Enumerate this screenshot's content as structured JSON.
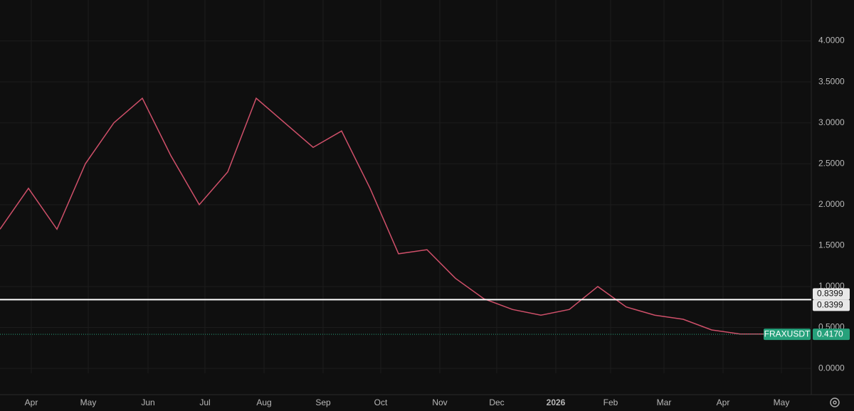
{
  "chart_data": {
    "type": "line",
    "series": [
      {
        "name": "FRAXUSDT",
        "color": "#d0506a",
        "values": [
          1.7,
          2.2,
          1.7,
          2.5,
          3.0,
          3.3,
          2.6,
          2.0,
          2.4,
          3.3,
          3.0,
          2.7,
          2.9,
          2.2,
          1.4,
          1.45,
          1.1,
          0.85,
          0.72,
          0.65,
          0.72,
          1.0,
          0.75,
          0.65,
          0.6,
          0.47,
          0.42,
          0.42,
          0.417
        ]
      }
    ],
    "xlim": [
      0,
      28.5
    ],
    "xticks": [
      {
        "value": 1.1,
        "label": "Apr"
      },
      {
        "value": 3.1,
        "label": "May"
      },
      {
        "value": 5.2,
        "label": "Jun"
      },
      {
        "value": 7.2,
        "label": "Jul"
      },
      {
        "value": 9.275,
        "label": "Aug"
      },
      {
        "value": 11.35,
        "label": "Sep"
      },
      {
        "value": 13.375,
        "label": "Oct"
      },
      {
        "value": 15.45,
        "label": "Nov"
      },
      {
        "value": 17.45,
        "label": "Dec"
      },
      {
        "value": 19.525,
        "label": "2026"
      },
      {
        "value": 21.45,
        "label": "Feb"
      },
      {
        "value": 23.325,
        "label": "Mar"
      },
      {
        "value": 25.4,
        "label": "Apr"
      },
      {
        "value": 27.45,
        "label": "May"
      }
    ],
    "ylim": [
      -0.06,
      4.5
    ],
    "yticks": [
      {
        "value": 0,
        "label": "0.0000"
      },
      {
        "value": 0.5,
        "label": "0.5000"
      },
      {
        "value": 1,
        "label": "1.0000"
      },
      {
        "value": 1.5,
        "label": "1.5000"
      },
      {
        "value": 2,
        "label": "2.0000"
      },
      {
        "value": 2.5,
        "label": "2.5000"
      },
      {
        "value": 3,
        "label": "3.0000"
      },
      {
        "value": 3.5,
        "label": "3.5000"
      },
      {
        "value": 4,
        "label": "4.0000"
      }
    ],
    "grid": true,
    "price_lines": [
      {
        "value": 0.8399,
        "label": "0.8399"
      },
      {
        "value": 0.8399,
        "label": "0.8399"
      }
    ],
    "last_price": {
      "name": "FRAXUSDT",
      "value": 0.417,
      "label": "0.4170",
      "color": "#26a17b"
    }
  }
}
